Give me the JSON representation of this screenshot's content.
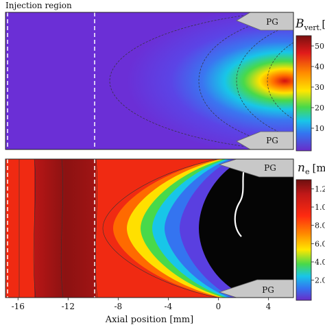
{
  "chart_data": [
    {
      "type": "heatmap",
      "title": "Injection region",
      "colorbar": {
        "label": "B_vert.",
        "label_base": "B",
        "label_sub": "vert.",
        "unit_fragment": "[",
        "ticks": [
          50,
          40,
          30,
          20,
          10
        ],
        "tick_labels": [
          "50",
          "40",
          "30",
          "20",
          "10"
        ],
        "range": [
          0,
          50
        ],
        "colormap": [
          "#7a1010",
          "#e81c1c",
          "#ff8a00",
          "#ffe700",
          "#48d94a",
          "#18c6e8",
          "#3474f0",
          "#5b3de3",
          "#6a2cc8"
        ]
      },
      "xlim": [
        -17,
        6
      ],
      "plasma_gun_label": "PG",
      "dashed_lines_x": [
        -16.2,
        -9.6
      ],
      "field_apex_x": -1.5
    },
    {
      "type": "heatmap",
      "colorbar": {
        "label": "n_e",
        "label_base": "n",
        "label_sub": "e",
        "unit_fragment": "[m",
        "ticks": [
          1.2,
          1.0,
          8.0,
          6.0,
          4.0,
          2.0
        ],
        "tick_labels": [
          "1.2",
          "1.0",
          "8.0",
          "6.0",
          "4.0",
          "2.0"
        ],
        "colormap": [
          "#7a1010",
          "#c81818",
          "#ff2a10",
          "#ff8a00",
          "#ffe700",
          "#48d94a",
          "#18c6e8",
          "#3474f0",
          "#6a2cc8"
        ]
      },
      "xlim": [
        -17,
        6
      ],
      "xlabel": "Axial position [mm]",
      "xticks": [
        -16,
        -12,
        -8,
        -4,
        0,
        4
      ],
      "xtick_labels": [
        "-16",
        "-12",
        "-8",
        "-4",
        "0",
        "4"
      ],
      "plasma_gun_label": "PG",
      "dashed_lines_x": [
        -16.2,
        -9.6
      ],
      "dense_band_x": [
        -16,
        -9.6
      ],
      "shock_apex_x": -8.2,
      "void_region_x": [
        -0.8,
        6
      ]
    }
  ]
}
